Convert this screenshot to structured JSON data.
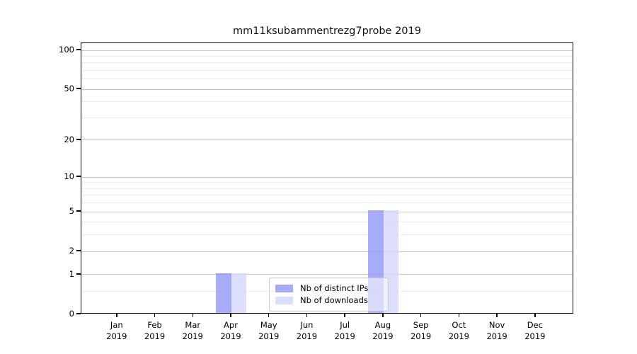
{
  "figure": {
    "background": "#ffffff",
    "spine_color": "#000000"
  },
  "chart_data": {
    "type": "bar",
    "title": "mm11ksubammentrezg7probe 2019",
    "months": [
      "Jan",
      "Feb",
      "Mar",
      "Apr",
      "May",
      "Jun",
      "Jul",
      "Aug",
      "Sep",
      "Oct",
      "Nov",
      "Dec"
    ],
    "year": "2019",
    "series": [
      {
        "name": "Nb of distinct IPs",
        "values": [
          0,
          0,
          0,
          1,
          0,
          0,
          0,
          5,
          0,
          0,
          0,
          0
        ],
        "color": "#9296F5",
        "alpha": 0.8,
        "rendered_color": "#A8ABF7"
      },
      {
        "name": "Nb of downloads",
        "values": [
          0,
          0,
          0,
          1,
          0,
          0,
          0,
          5,
          0,
          0,
          0,
          0
        ],
        "color": "#D3D6FA",
        "alpha": 0.8,
        "rendered_color": "#DCDEFB"
      }
    ],
    "y_ticks": [
      0,
      1,
      2,
      5,
      10,
      20,
      50,
      100
    ],
    "y_minor_ticks": [
      0.5,
      3,
      4,
      6,
      7,
      8,
      9,
      30,
      40,
      60,
      70,
      80,
      90
    ],
    "scale": "log1p",
    "ylim": [
      0,
      113
    ],
    "xlabel": "",
    "ylabel": "",
    "grid": true,
    "legend": {
      "position": "lower center",
      "border_color": "#cbcbcb",
      "items": [
        "Nb of distinct IPs",
        "Nb of downloads"
      ]
    },
    "grid_colors": {
      "major": "#c9c9c9",
      "minor": "#ededed"
    }
  }
}
